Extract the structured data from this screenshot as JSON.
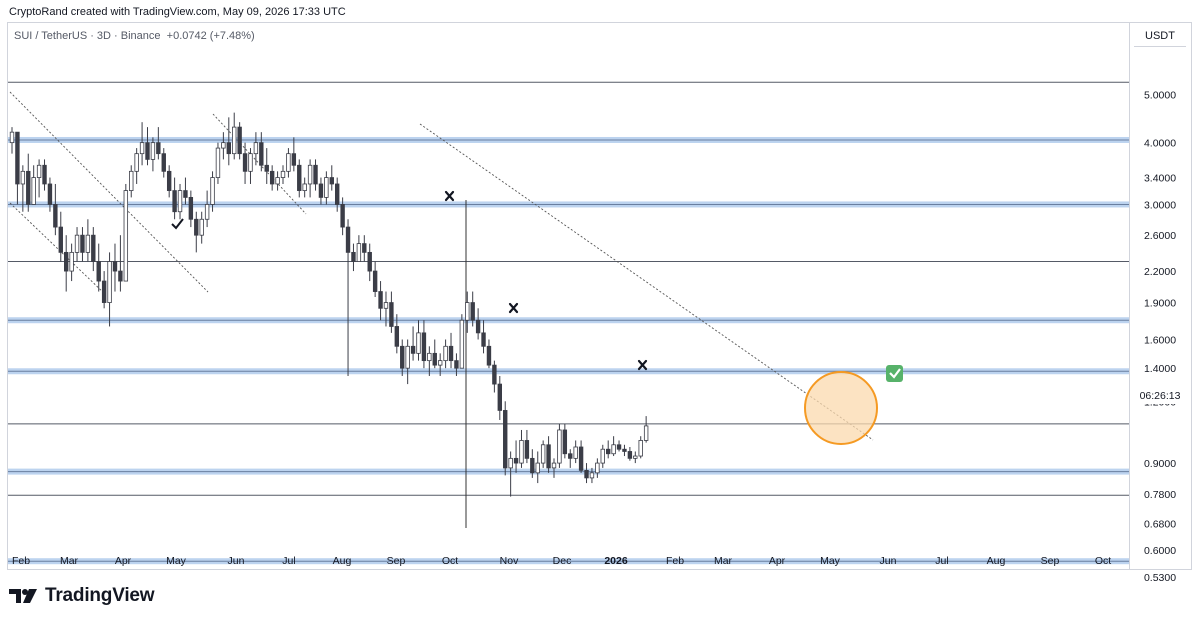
{
  "header": {
    "attribution": "CryptoRand created with TradingView.com, May 09, 2026 17:33 UTC"
  },
  "legend": {
    "symbol": "SUI / TetherUS · 3D · Binance",
    "change": "+0.0742 (+7.48%)"
  },
  "price_axis": {
    "currency": "USDT",
    "countdown": "06:26:13"
  },
  "footer": {
    "brand": "TradingView"
  },
  "colors": {
    "bull": "#ffffff",
    "bear": "#3b3d47",
    "candle_outline": "#3b3d47",
    "support_band": "#bcd3ef",
    "highlight_circle": "#f59a23",
    "check_badge": "#57b26a"
  },
  "icons": [
    "tradingview-logo-icon",
    "check-mark-icon",
    "x-mark-icon",
    "green-check-badge-icon"
  ],
  "chart_data": {
    "type": "candlestick",
    "title": "SUI / TetherUS · 3D · Binance",
    "y_scale": "log",
    "ylim": [
      0.5,
      5.6
    ],
    "price_ticks": [
      "5.0000",
      "4.0000",
      "3.4000",
      "3.0000",
      "2.6000",
      "2.2000",
      "1.9000",
      "1.6000",
      "1.4000",
      "1.2000",
      "0.9000",
      "0.7800",
      "0.6800",
      "0.6000",
      "0.5300"
    ],
    "price_tick_values": [
      5.0,
      4.0,
      3.4,
      3.0,
      2.6,
      2.2,
      1.9,
      1.6,
      1.4,
      1.2,
      0.9,
      0.78,
      0.68,
      0.6,
      0.53
    ],
    "x_ticks": [
      "Feb",
      "Mar",
      "Apr",
      "May",
      "Jun",
      "Jul",
      "Aug",
      "Sep",
      "Oct",
      "Nov",
      "Dec",
      "2026",
      "Feb",
      "Mar",
      "Apr",
      "May",
      "Jun",
      "Jul",
      "Aug",
      "Sep",
      "Oct"
    ],
    "horizontal_levels": [
      {
        "price": 5.3,
        "style": "line"
      },
      {
        "price": 4.05,
        "style": "band"
      },
      {
        "price": 3.0,
        "style": "band"
      },
      {
        "price": 2.3,
        "style": "line"
      },
      {
        "price": 1.75,
        "style": "band"
      },
      {
        "price": 1.38,
        "style": "band"
      },
      {
        "price": 1.08,
        "style": "line"
      },
      {
        "price": 0.865,
        "style": "band"
      },
      {
        "price": 0.775,
        "style": "line"
      },
      {
        "price": 0.57,
        "style": "band"
      }
    ],
    "candles": [
      [
        4.0,
        4.3,
        3.8,
        4.2
      ],
      [
        4.2,
        4.2,
        3.0,
        3.3
      ],
      [
        3.3,
        3.6,
        2.9,
        3.5
      ],
      [
        3.5,
        3.8,
        2.9,
        3.0
      ],
      [
        3.0,
        3.6,
        3.0,
        3.4
      ],
      [
        3.4,
        3.7,
        3.1,
        3.6
      ],
      [
        3.6,
        3.7,
        3.2,
        3.3
      ],
      [
        3.3,
        3.4,
        2.9,
        3.0
      ],
      [
        3.0,
        3.3,
        2.6,
        2.7
      ],
      [
        2.7,
        2.9,
        2.3,
        2.4
      ],
      [
        2.4,
        2.6,
        2.0,
        2.2
      ],
      [
        2.2,
        2.5,
        2.1,
        2.4
      ],
      [
        2.4,
        2.7,
        2.3,
        2.6
      ],
      [
        2.6,
        2.7,
        2.3,
        2.4
      ],
      [
        2.4,
        2.8,
        2.3,
        2.6
      ],
      [
        2.6,
        2.7,
        2.2,
        2.3
      ],
      [
        2.3,
        2.5,
        2.0,
        2.1
      ],
      [
        2.1,
        2.2,
        1.85,
        1.9
      ],
      [
        1.9,
        2.4,
        1.7,
        2.3
      ],
      [
        2.3,
        2.5,
        2.0,
        2.2
      ],
      [
        2.2,
        2.6,
        2.0,
        2.1
      ],
      [
        2.1,
        3.3,
        2.1,
        3.2
      ],
      [
        3.2,
        3.6,
        3.1,
        3.5
      ],
      [
        3.5,
        3.9,
        3.3,
        3.8
      ],
      [
        3.8,
        4.4,
        3.6,
        4.0
      ],
      [
        4.0,
        4.3,
        3.6,
        3.7
      ],
      [
        3.7,
        4.1,
        3.5,
        4.0
      ],
      [
        4.0,
        4.3,
        3.7,
        3.8
      ],
      [
        3.8,
        3.9,
        3.4,
        3.5
      ],
      [
        3.5,
        3.6,
        3.1,
        3.2
      ],
      [
        3.2,
        3.4,
        2.8,
        2.9
      ],
      [
        2.9,
        3.3,
        2.8,
        3.2
      ],
      [
        3.2,
        3.4,
        3.0,
        3.1
      ],
      [
        3.1,
        3.2,
        2.7,
        2.8
      ],
      [
        2.8,
        2.9,
        2.4,
        2.6
      ],
      [
        2.6,
        2.9,
        2.5,
        2.8
      ],
      [
        2.8,
        3.2,
        2.7,
        3.0
      ],
      [
        3.0,
        3.5,
        2.9,
        3.4
      ],
      [
        3.4,
        4.0,
        3.3,
        3.9
      ],
      [
        3.9,
        4.2,
        3.7,
        4.0
      ],
      [
        4.0,
        4.5,
        3.6,
        3.8
      ],
      [
        3.8,
        4.6,
        3.7,
        4.3
      ],
      [
        4.3,
        4.4,
        3.7,
        3.8
      ],
      [
        3.8,
        4.0,
        3.3,
        3.5
      ],
      [
        3.5,
        3.9,
        3.3,
        3.8
      ],
      [
        3.8,
        4.2,
        3.6,
        4.0
      ],
      [
        4.0,
        4.2,
        3.5,
        3.6
      ],
      [
        3.6,
        3.9,
        3.3,
        3.5
      ],
      [
        3.5,
        3.6,
        3.2,
        3.3
      ],
      [
        3.3,
        3.5,
        3.2,
        3.4
      ],
      [
        3.4,
        3.6,
        3.3,
        3.5
      ],
      [
        3.5,
        3.9,
        3.4,
        3.8
      ],
      [
        3.8,
        4.1,
        3.5,
        3.6
      ],
      [
        3.6,
        3.7,
        3.1,
        3.2
      ],
      [
        3.2,
        3.4,
        3.1,
        3.3
      ],
      [
        3.3,
        3.7,
        3.1,
        3.6
      ],
      [
        3.6,
        3.7,
        3.2,
        3.3
      ],
      [
        3.3,
        3.4,
        3.0,
        3.1
      ],
      [
        3.1,
        3.5,
        3.0,
        3.4
      ],
      [
        3.4,
        3.6,
        3.2,
        3.3
      ],
      [
        3.3,
        3.4,
        2.9,
        3.0
      ],
      [
        3.0,
        3.1,
        2.6,
        2.7
      ],
      [
        2.7,
        2.8,
        1.35,
        2.4
      ],
      [
        2.4,
        2.5,
        2.2,
        2.3
      ],
      [
        2.3,
        2.6,
        2.3,
        2.5
      ],
      [
        2.5,
        2.6,
        2.3,
        2.4
      ],
      [
        2.4,
        2.5,
        2.1,
        2.2
      ],
      [
        2.2,
        2.3,
        1.95,
        2.0
      ],
      [
        2.0,
        2.1,
        1.75,
        1.85
      ],
      [
        1.85,
        2.0,
        1.7,
        1.9
      ],
      [
        1.9,
        2.0,
        1.65,
        1.7
      ],
      [
        1.7,
        1.8,
        1.5,
        1.55
      ],
      [
        1.55,
        1.6,
        1.35,
        1.4
      ],
      [
        1.4,
        1.6,
        1.3,
        1.55
      ],
      [
        1.55,
        1.7,
        1.45,
        1.5
      ],
      [
        1.5,
        1.75,
        1.45,
        1.65
      ],
      [
        1.65,
        1.75,
        1.4,
        1.45
      ],
      [
        1.45,
        1.55,
        1.35,
        1.5
      ],
      [
        1.5,
        1.6,
        1.4,
        1.42
      ],
      [
        1.42,
        1.5,
        1.35,
        1.45
      ],
      [
        1.45,
        1.6,
        1.4,
        1.55
      ],
      [
        1.55,
        1.65,
        1.4,
        1.45
      ],
      [
        1.45,
        1.5,
        1.35,
        1.4
      ],
      [
        1.4,
        1.8,
        1.4,
        1.75
      ],
      [
        1.75,
        2.0,
        1.65,
        1.9
      ],
      [
        1.9,
        2.0,
        1.7,
        1.75
      ],
      [
        1.75,
        1.85,
        1.6,
        1.65
      ],
      [
        1.65,
        1.75,
        1.5,
        1.55
      ],
      [
        1.55,
        1.6,
        1.4,
        1.42
      ],
      [
        1.42,
        1.45,
        1.25,
        1.3
      ],
      [
        1.3,
        1.35,
        1.1,
        1.15
      ],
      [
        1.15,
        1.2,
        0.85,
        0.88
      ],
      [
        0.88,
        0.95,
        0.77,
        0.92
      ],
      [
        0.92,
        1.0,
        0.86,
        0.9
      ],
      [
        0.9,
        1.05,
        0.88,
        1.0
      ],
      [
        1.0,
        1.05,
        0.9,
        0.92
      ],
      [
        0.92,
        0.96,
        0.84,
        0.86
      ],
      [
        0.86,
        0.95,
        0.82,
        0.9
      ],
      [
        0.9,
        1.0,
        0.88,
        0.98
      ],
      [
        0.98,
        1.02,
        0.86,
        0.88
      ],
      [
        0.88,
        0.92,
        0.84,
        0.9
      ],
      [
        0.9,
        1.08,
        0.88,
        1.05
      ],
      [
        1.05,
        1.08,
        0.92,
        0.94
      ],
      [
        0.94,
        0.96,
        0.88,
        0.92
      ],
      [
        0.92,
        1.0,
        0.9,
        0.97
      ],
      [
        0.97,
        1.0,
        0.86,
        0.87
      ],
      [
        0.87,
        0.9,
        0.82,
        0.84
      ],
      [
        0.84,
        0.88,
        0.82,
        0.86
      ],
      [
        0.86,
        0.92,
        0.84,
        0.9
      ],
      [
        0.9,
        0.98,
        0.88,
        0.96
      ],
      [
        0.96,
        1.0,
        0.92,
        0.94
      ],
      [
        0.94,
        1.02,
        0.93,
        0.98
      ],
      [
        0.98,
        1.0,
        0.95,
        0.96
      ],
      [
        0.96,
        0.98,
        0.93,
        0.95
      ],
      [
        0.95,
        0.97,
        0.91,
        0.92
      ],
      [
        0.92,
        0.95,
        0.9,
        0.93
      ],
      [
        0.93,
        1.02,
        0.92,
        1.0
      ],
      [
        1.0,
        1.12,
        0.99,
        1.07
      ]
    ]
  }
}
